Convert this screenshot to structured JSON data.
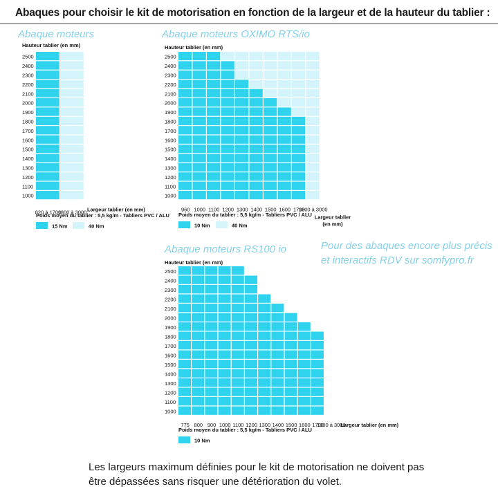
{
  "header": {
    "title": "Abaques pour choisir le kit de motorisation en fonction de la largeur et de la hauteur du tablier :"
  },
  "promo": {
    "line1": "Pour des abaques encore plus précis",
    "line2": "et interactifs RDV sur somfypro.fr"
  },
  "footnote": {
    "line1": "Les largeurs maximum définies pour le kit de motorisation ne doivent pas",
    "line2": "être dépassées sans risquer une détérioration du volet."
  },
  "colors": {
    "strong": "#2fd3ee",
    "light": "#d4f4fb",
    "accent_text": "#86d0e8"
  },
  "chart_data": [
    {
      "id": "moteurs",
      "type": "heatmap",
      "title": "Abaque moteurs",
      "ylabel": "Hauteur tablier (en mm)",
      "xlabel": "Largeur tablier (en mm)",
      "subtitle": "Poids moyen du tablier : 5,5 kg/m - Tabliers PVC / ALU",
      "heights": [
        2500,
        2400,
        2300,
        2200,
        2100,
        2000,
        1900,
        1800,
        1700,
        1600,
        1500,
        1400,
        1300,
        1200,
        1100,
        1000
      ],
      "widths": [
        "820 à 1700",
        "1800 à 3000"
      ],
      "legend": [
        {
          "label": "15 Nm",
          "level": 1
        },
        {
          "label": "40 Nm",
          "level": 2
        }
      ],
      "cells": [
        [
          1,
          2
        ],
        [
          1,
          2
        ],
        [
          1,
          2
        ],
        [
          1,
          2
        ],
        [
          1,
          2
        ],
        [
          1,
          2
        ],
        [
          1,
          2
        ],
        [
          1,
          2
        ],
        [
          1,
          2
        ],
        [
          1,
          2
        ],
        [
          1,
          2
        ],
        [
          1,
          2
        ],
        [
          1,
          2
        ],
        [
          1,
          2
        ],
        [
          1,
          2
        ],
        [
          1,
          2
        ]
      ]
    },
    {
      "id": "oximo",
      "type": "heatmap",
      "title": "Abaque moteurs OXIMO RTS/io",
      "ylabel": "Hauteur tablier (en mm)",
      "xlabel": "Largeur tablier (en mm)",
      "subtitle": "Poids moyen du tablier : 5,5 kg/m - Tabliers PVC / ALU",
      "heights": [
        2500,
        2400,
        2300,
        2200,
        2100,
        2000,
        1900,
        1800,
        1700,
        1600,
        1500,
        1400,
        1300,
        1200,
        1100,
        1000
      ],
      "widths": [
        "960",
        "1000",
        "1100",
        "1200",
        "1300",
        "1400",
        "1500",
        "1600",
        "1700",
        "1800 à 3000"
      ],
      "legend": [
        {
          "label": "10 Nm",
          "level": 1
        },
        {
          "label": "40 Nm",
          "level": 2
        }
      ],
      "cells": [
        [
          1,
          1,
          1,
          2,
          2,
          2,
          2,
          2,
          2,
          2
        ],
        [
          1,
          1,
          1,
          1,
          2,
          2,
          2,
          2,
          2,
          2
        ],
        [
          1,
          1,
          1,
          1,
          2,
          2,
          2,
          2,
          2,
          2
        ],
        [
          1,
          1,
          1,
          1,
          1,
          2,
          2,
          2,
          2,
          2
        ],
        [
          1,
          1,
          1,
          1,
          1,
          1,
          2,
          2,
          2,
          2
        ],
        [
          1,
          1,
          1,
          1,
          1,
          1,
          1,
          2,
          2,
          2
        ],
        [
          1,
          1,
          1,
          1,
          1,
          1,
          1,
          1,
          2,
          2
        ],
        [
          1,
          1,
          1,
          1,
          1,
          1,
          1,
          1,
          1,
          2
        ],
        [
          1,
          1,
          1,
          1,
          1,
          1,
          1,
          1,
          1,
          2
        ],
        [
          1,
          1,
          1,
          1,
          1,
          1,
          1,
          1,
          1,
          2
        ],
        [
          1,
          1,
          1,
          1,
          1,
          1,
          1,
          1,
          1,
          2
        ],
        [
          1,
          1,
          1,
          1,
          1,
          1,
          1,
          1,
          1,
          2
        ],
        [
          1,
          1,
          1,
          1,
          1,
          1,
          1,
          1,
          1,
          2
        ],
        [
          1,
          1,
          1,
          1,
          1,
          1,
          1,
          1,
          1,
          2
        ],
        [
          1,
          1,
          1,
          1,
          1,
          1,
          1,
          1,
          1,
          2
        ],
        [
          1,
          1,
          1,
          1,
          1,
          1,
          1,
          1,
          1,
          2
        ]
      ]
    },
    {
      "id": "rs100",
      "type": "heatmap",
      "title": "Abaque moteurs RS100 io",
      "ylabel": "Hauteur tablier (en mm)",
      "xlabel": "Largeur tablier (en mm)",
      "subtitle": "Poids moyen du tablier : 5,5 kg/m - Tabliers PVC / ALU",
      "heights": [
        2500,
        2400,
        2300,
        2200,
        2100,
        2000,
        1900,
        1800,
        1700,
        1600,
        1500,
        1400,
        1300,
        1200,
        1100,
        1000
      ],
      "widths": [
        "775",
        "800",
        "900",
        "1000",
        "1100",
        "1200",
        "1300",
        "1400",
        "1500",
        "1600",
        "1700",
        "1800 à 3000"
      ],
      "legend": [
        {
          "label": "10 Nm",
          "level": 1
        }
      ],
      "cells": [
        [
          1,
          1,
          1,
          1,
          1,
          0,
          0,
          0,
          0,
          0,
          0,
          0
        ],
        [
          1,
          1,
          1,
          1,
          1,
          1,
          0,
          0,
          0,
          0,
          0,
          0
        ],
        [
          1,
          1,
          1,
          1,
          1,
          1,
          0,
          0,
          0,
          0,
          0,
          0
        ],
        [
          1,
          1,
          1,
          1,
          1,
          1,
          1,
          0,
          0,
          0,
          0,
          0
        ],
        [
          1,
          1,
          1,
          1,
          1,
          1,
          1,
          1,
          0,
          0,
          0,
          0
        ],
        [
          1,
          1,
          1,
          1,
          1,
          1,
          1,
          1,
          1,
          0,
          0,
          0
        ],
        [
          1,
          1,
          1,
          1,
          1,
          1,
          1,
          1,
          1,
          1,
          0,
          0
        ],
        [
          1,
          1,
          1,
          1,
          1,
          1,
          1,
          1,
          1,
          1,
          1,
          0
        ],
        [
          1,
          1,
          1,
          1,
          1,
          1,
          1,
          1,
          1,
          1,
          1,
          0
        ],
        [
          1,
          1,
          1,
          1,
          1,
          1,
          1,
          1,
          1,
          1,
          1,
          0
        ],
        [
          1,
          1,
          1,
          1,
          1,
          1,
          1,
          1,
          1,
          1,
          1,
          0
        ],
        [
          1,
          1,
          1,
          1,
          1,
          1,
          1,
          1,
          1,
          1,
          1,
          0
        ],
        [
          1,
          1,
          1,
          1,
          1,
          1,
          1,
          1,
          1,
          1,
          1,
          0
        ],
        [
          1,
          1,
          1,
          1,
          1,
          1,
          1,
          1,
          1,
          1,
          1,
          0
        ],
        [
          1,
          1,
          1,
          1,
          1,
          1,
          1,
          1,
          1,
          1,
          1,
          0
        ],
        [
          1,
          1,
          1,
          1,
          1,
          1,
          1,
          1,
          1,
          1,
          1,
          0
        ]
      ]
    }
  ]
}
